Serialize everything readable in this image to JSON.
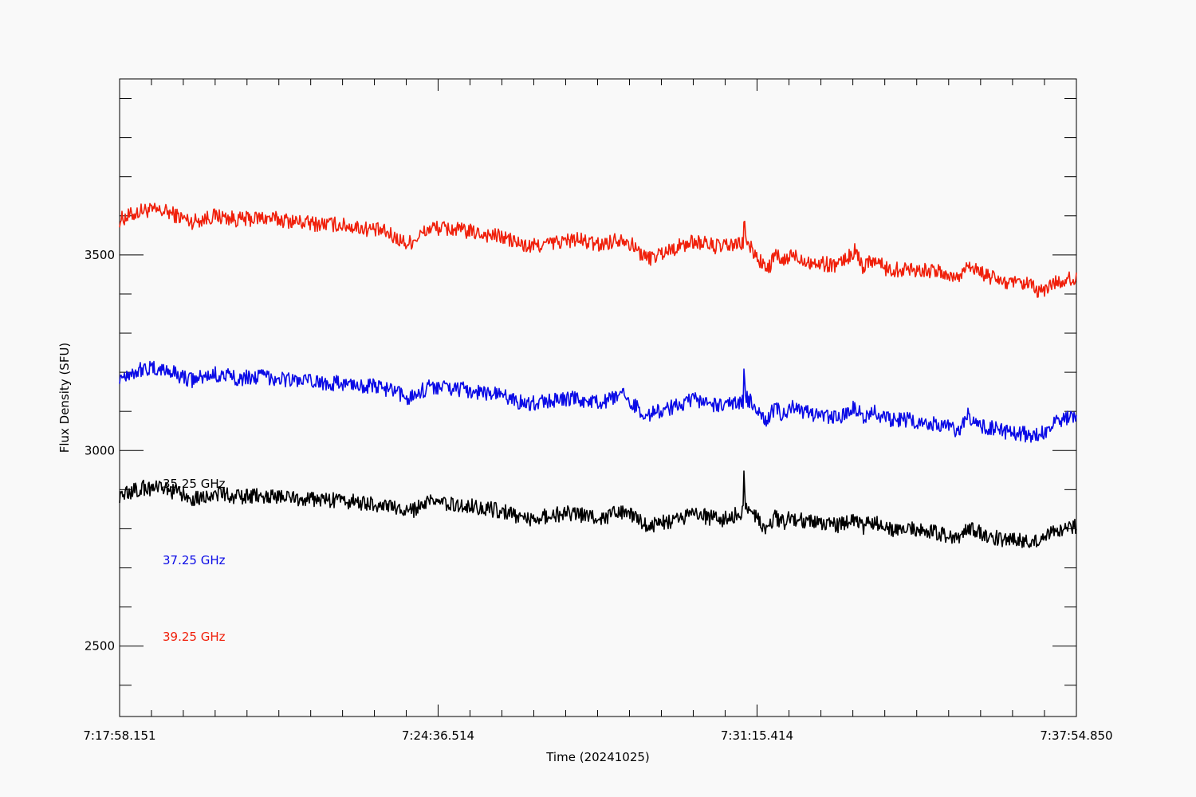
{
  "chart_data": {
    "type": "line",
    "xlabel": "Time (20241025)",
    "ylabel": "Flux Density (SFU)",
    "x_tick_labels": [
      "7:17:58.151",
      "7:24:36.514",
      "7:31:15.414",
      "7:37:54.850"
    ],
    "x_tick_seconds": [
      0,
      398.363,
      797.263,
      1196.699
    ],
    "xlim_seconds": [
      0,
      1196.699
    ],
    "ylim": [
      2320,
      3950
    ],
    "y_major_ticks": [
      2500,
      3000,
      3500
    ],
    "y_minor_step": 100,
    "grid": false,
    "legend_placement": "lower-left",
    "colors": {
      "35.25 GHz": "#000000",
      "37.25 GHz": "#0b0be6",
      "39.25 GHz": "#f0200b"
    },
    "series": [
      {
        "name": "39.25 GHz",
        "color": "#f0200b",
        "t": [
          0,
          30,
          60,
          90,
          120,
          150,
          180,
          210,
          240,
          270,
          300,
          330,
          360,
          390,
          420,
          450,
          480,
          510,
          540,
          570,
          600,
          630,
          660,
          690,
          720,
          750,
          780,
          781,
          782,
          783,
          786,
          790,
          810,
          820,
          830,
          840,
          870,
          900,
          920,
          930,
          940,
          950,
          960,
          990,
          1020,
          1050,
          1060,
          1080,
          1110,
          1140,
          1150,
          1170,
          1196
        ],
        "values": [
          3590,
          3615,
          3610,
          3585,
          3600,
          3590,
          3595,
          3588,
          3580,
          3578,
          3570,
          3560,
          3528,
          3570,
          3565,
          3555,
          3545,
          3520,
          3530,
          3540,
          3525,
          3545,
          3490,
          3515,
          3535,
          3520,
          3528,
          3610,
          3575,
          3540,
          3525,
          3515,
          3460,
          3500,
          3480,
          3500,
          3478,
          3475,
          3510,
          3470,
          3490,
          3480,
          3462,
          3465,
          3458,
          3440,
          3480,
          3450,
          3428,
          3422,
          3402,
          3430,
          3440
        ]
      },
      {
        "name": "37.25 GHz",
        "color": "#0b0be6",
        "t": [
          0,
          30,
          60,
          90,
          120,
          150,
          180,
          210,
          240,
          270,
          300,
          330,
          360,
          390,
          420,
          450,
          480,
          510,
          540,
          570,
          600,
          630,
          660,
          690,
          720,
          750,
          780,
          781,
          782,
          783,
          786,
          790,
          810,
          820,
          830,
          840,
          870,
          900,
          920,
          930,
          940,
          950,
          960,
          990,
          1020,
          1050,
          1060,
          1080,
          1110,
          1140,
          1150,
          1170,
          1196
        ],
        "values": [
          3190,
          3210,
          3205,
          3180,
          3195,
          3185,
          3190,
          3182,
          3175,
          3172,
          3168,
          3160,
          3135,
          3165,
          3158,
          3150,
          3140,
          3118,
          3128,
          3132,
          3120,
          3140,
          3090,
          3110,
          3130,
          3112,
          3125,
          3240,
          3175,
          3140,
          3130,
          3125,
          3075,
          3112,
          3090,
          3110,
          3088,
          3085,
          3112,
          3080,
          3100,
          3092,
          3080,
          3078,
          3070,
          3052,
          3090,
          3062,
          3048,
          3040,
          3035,
          3075,
          3088
        ]
      },
      {
        "name": "35.25 GHz",
        "color": "#000000",
        "t": [
          0,
          30,
          60,
          90,
          120,
          150,
          180,
          210,
          240,
          270,
          300,
          330,
          360,
          390,
          420,
          450,
          480,
          510,
          540,
          570,
          600,
          630,
          660,
          690,
          720,
          750,
          780,
          781,
          782,
          783,
          786,
          790,
          810,
          820,
          830,
          840,
          870,
          900,
          920,
          930,
          940,
          950,
          960,
          990,
          1020,
          1050,
          1060,
          1080,
          1110,
          1140,
          1150,
          1170,
          1196
        ],
        "values": [
          2885,
          2905,
          2900,
          2878,
          2890,
          2880,
          2885,
          2880,
          2875,
          2872,
          2868,
          2860,
          2842,
          2868,
          2862,
          2855,
          2845,
          2825,
          2835,
          2840,
          2825,
          2845,
          2805,
          2820,
          2838,
          2822,
          2842,
          2985,
          2900,
          2858,
          2845,
          2840,
          2800,
          2830,
          2815,
          2830,
          2812,
          2808,
          2828,
          2805,
          2820,
          2815,
          2800,
          2798,
          2790,
          2778,
          2805,
          2785,
          2770,
          2768,
          2765,
          2795,
          2808
        ]
      }
    ]
  }
}
